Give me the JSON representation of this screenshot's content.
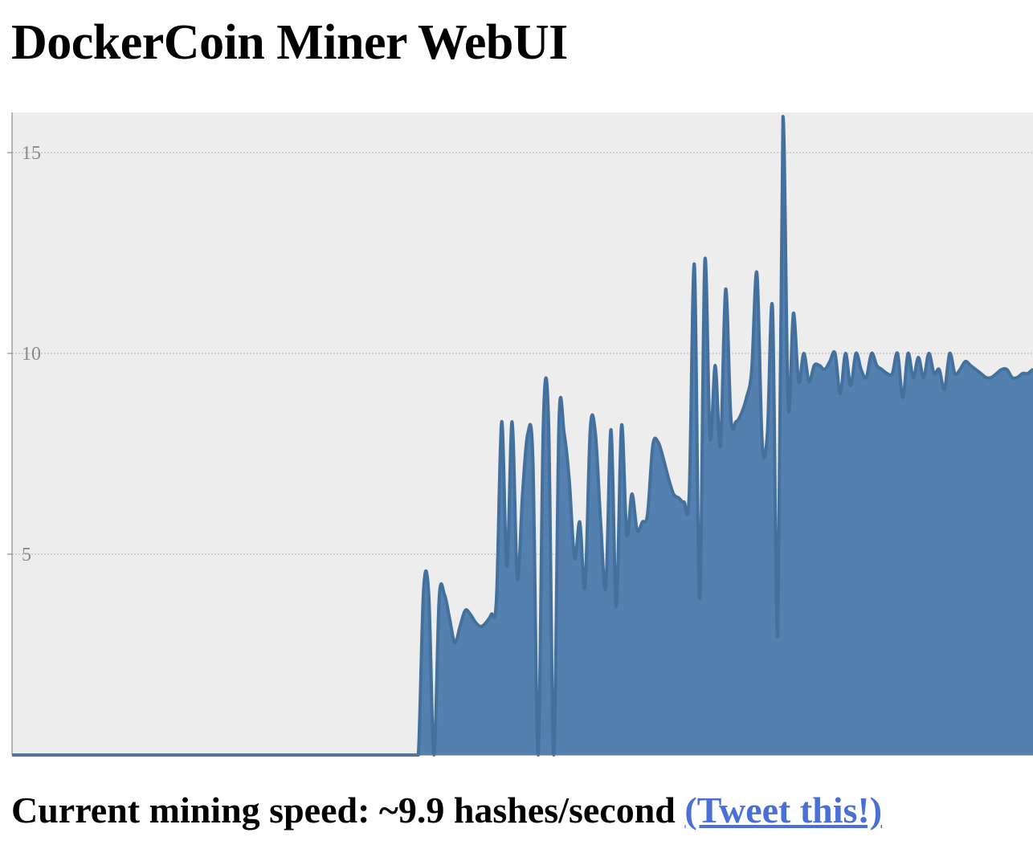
{
  "page": {
    "title": "DockerCoin Miner WebUI",
    "speed_prefix": "Current mining speed: ~",
    "speed_value": "9.9",
    "speed_suffix": " hashes/second",
    "tweet_label": "(Tweet this!)"
  },
  "colors": {
    "plot_background": "#ededed",
    "area_fill": "#5480b0",
    "area_stroke": "#44709e",
    "grid": "#b4b4b4",
    "link": "#4a6fd6"
  },
  "chart_data": {
    "type": "area",
    "ylim": [
      0,
      16
    ],
    "yticks": [
      {
        "value": 5,
        "label": "5"
      },
      {
        "value": 10,
        "label": "10"
      },
      {
        "value": 15,
        "label": "15"
      }
    ],
    "grid": "horizontal dotted",
    "x_labels_shown": false,
    "series": [
      {
        "values": [
          0,
          0,
          0,
          0,
          0,
          0,
          0,
          0,
          0,
          0,
          0,
          0,
          0,
          0,
          0,
          0,
          0,
          0,
          0,
          0,
          0,
          0,
          0,
          0,
          0,
          0,
          0,
          0,
          0,
          0,
          0,
          0,
          0,
          0,
          0,
          0,
          0,
          0,
          0,
          0,
          0,
          0,
          0,
          0,
          0,
          0,
          0,
          0,
          0,
          0,
          0,
          0,
          0,
          0,
          0,
          0,
          0,
          0,
          0,
          0,
          0,
          0,
          0,
          0,
          0,
          0,
          0,
          0,
          0,
          0,
          0,
          0,
          0,
          0,
          0,
          0,
          0,
          0,
          0,
          4.1,
          4.0,
          0.0,
          3.9,
          4.0,
          3.4,
          2.8,
          3.2,
          3.6,
          3.5,
          3.3,
          3.2,
          3.3,
          3.5,
          3.9,
          8.3,
          4.7,
          8.3,
          4.4,
          6.5,
          8.0,
          7.3,
          0.0,
          8.3,
          8.3,
          0.0,
          8.3,
          8.0,
          6.8,
          4.9,
          5.8,
          4.2,
          8.1,
          8.0,
          5.8,
          4.2,
          8.1,
          3.7,
          8.2,
          5.5,
          6.5,
          5.6,
          5.8,
          6.0,
          7.7,
          7.8,
          7.4,
          6.9,
          6.5,
          6.4,
          6.3,
          6.5,
          12.2,
          3.9,
          12.3,
          7.9,
          9.7,
          7.7,
          11.6,
          8.4,
          8.3,
          8.5,
          8.9,
          9.6,
          12.0,
          7.8,
          8.0,
          11.1,
          3.0,
          15.9,
          8.7,
          11.0,
          9.3,
          10.0,
          9.3,
          9.7,
          9.7,
          9.6,
          9.8,
          10.0,
          9.0,
          10.0,
          9.2,
          10.0,
          9.6,
          9.4,
          10.0,
          9.7,
          9.6,
          9.5,
          9.5,
          10.0,
          8.9,
          10.0,
          9.4,
          9.9,
          9.4,
          10.0,
          9.5,
          9.6,
          9.1,
          10.0,
          9.5,
          9.6,
          9.8,
          9.7,
          9.6,
          9.5,
          9.4,
          9.4,
          9.5,
          9.6,
          9.6,
          9.4,
          9.4,
          9.5,
          9.5,
          9.6
        ]
      }
    ]
  }
}
